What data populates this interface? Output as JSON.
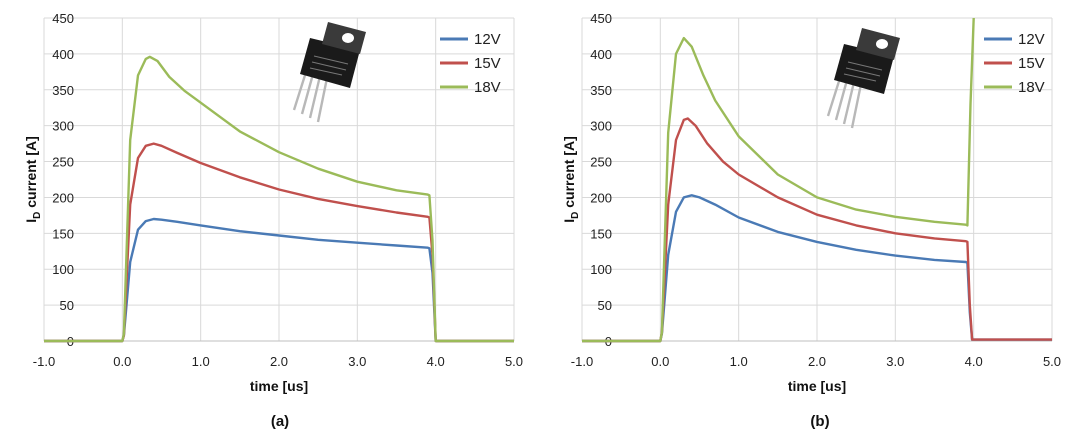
{
  "chart_data": [
    {
      "type": "line",
      "caption": "(a)",
      "xlabel": "time [us]",
      "ylabel_main": "I",
      "ylabel_sub": "D",
      "ylabel_rest": " current [A]",
      "xlim": [
        -1.0,
        5.0
      ],
      "ylim": [
        0,
        450
      ],
      "xticks": [
        "-1.0",
        "0.0",
        "1.0",
        "2.0",
        "3.0",
        "4.0",
        "5.0"
      ],
      "yticks": [
        "0",
        "50",
        "100",
        "150",
        "200",
        "250",
        "300",
        "350",
        "400",
        "450"
      ],
      "grid": true,
      "legend_position": "top-right",
      "component_image": "to247-4-package-icon",
      "series": [
        {
          "name": "12V",
          "color": "#4a7ab5",
          "x": [
            -1.0,
            0.0,
            0.02,
            0.1,
            0.2,
            0.3,
            0.4,
            0.5,
            0.7,
            1.0,
            1.5,
            2.0,
            2.5,
            3.0,
            3.5,
            3.9,
            3.92,
            3.96,
            4.0,
            5.0
          ],
          "y": [
            0,
            0,
            8,
            110,
            155,
            167,
            170,
            169,
            166,
            161,
            153,
            147,
            141,
            137,
            133,
            130,
            129,
            95,
            0,
            0
          ]
        },
        {
          "name": "15V",
          "color": "#c0504d",
          "x": [
            -1.0,
            0.0,
            0.02,
            0.1,
            0.2,
            0.3,
            0.4,
            0.5,
            0.7,
            1.0,
            1.5,
            2.0,
            2.5,
            3.0,
            3.5,
            3.9,
            3.92,
            3.96,
            4.0,
            5.0
          ],
          "y": [
            0,
            0,
            8,
            190,
            255,
            272,
            275,
            272,
            262,
            248,
            228,
            211,
            198,
            188,
            179,
            173,
            172,
            120,
            0,
            0
          ]
        },
        {
          "name": "18V",
          "color": "#9bbb59",
          "x": [
            -1.0,
            0.0,
            0.02,
            0.1,
            0.2,
            0.3,
            0.35,
            0.45,
            0.6,
            0.8,
            1.0,
            1.5,
            2.0,
            2.5,
            3.0,
            3.5,
            3.9,
            3.92,
            3.96,
            4.0,
            5.0
          ],
          "y": [
            0,
            0,
            10,
            280,
            370,
            393,
            396,
            390,
            368,
            348,
            332,
            292,
            263,
            240,
            222,
            210,
            204,
            203,
            140,
            0,
            0
          ]
        }
      ]
    },
    {
      "type": "line",
      "caption": "(b)",
      "xlabel": "time [us]",
      "ylabel_main": "I",
      "ylabel_sub": "D",
      "ylabel_rest": " current [A]",
      "xlim": [
        -1.0,
        5.0
      ],
      "ylim": [
        0,
        450
      ],
      "xticks": [
        "-1.0",
        "0.0",
        "1.0",
        "2.0",
        "3.0",
        "4.0",
        "5.0"
      ],
      "yticks": [
        "0",
        "50",
        "100",
        "150",
        "200",
        "250",
        "300",
        "350",
        "400",
        "450"
      ],
      "grid": true,
      "legend_position": "top-right",
      "component_image": "to247-4-package-icon",
      "series": [
        {
          "name": "12V",
          "color": "#4a7ab5",
          "x": [
            -1.0,
            0.0,
            0.02,
            0.1,
            0.2,
            0.3,
            0.4,
            0.5,
            0.7,
            1.0,
            1.5,
            2.0,
            2.5,
            3.0,
            3.5,
            3.9,
            3.92,
            3.95,
            3.98,
            5.0
          ],
          "y": [
            0,
            0,
            10,
            120,
            180,
            200,
            203,
            200,
            190,
            172,
            152,
            138,
            127,
            119,
            113,
            110,
            109,
            40,
            2,
            2
          ]
        },
        {
          "name": "15V",
          "color": "#c0504d",
          "x": [
            -1.0,
            0.0,
            0.02,
            0.1,
            0.2,
            0.3,
            0.35,
            0.45,
            0.6,
            0.8,
            1.0,
            1.5,
            2.0,
            2.5,
            3.0,
            3.5,
            3.9,
            3.92,
            3.95,
            3.98,
            5.0
          ],
          "y": [
            0,
            0,
            12,
            190,
            280,
            308,
            310,
            300,
            275,
            250,
            232,
            200,
            176,
            161,
            150,
            143,
            139,
            138,
            50,
            2,
            2
          ]
        },
        {
          "name": "18V",
          "color": "#9bbb59",
          "x": [
            -1.0,
            0.0,
            0.02,
            0.1,
            0.2,
            0.3,
            0.4,
            0.55,
            0.7,
            1.0,
            1.5,
            2.0,
            2.5,
            3.0,
            3.5,
            3.9,
            3.92,
            3.96,
            4.0
          ],
          "y": [
            0,
            0,
            12,
            290,
            400,
            422,
            410,
            370,
            335,
            285,
            232,
            200,
            183,
            173,
            166,
            162,
            161,
            330,
            450
          ]
        }
      ]
    }
  ]
}
